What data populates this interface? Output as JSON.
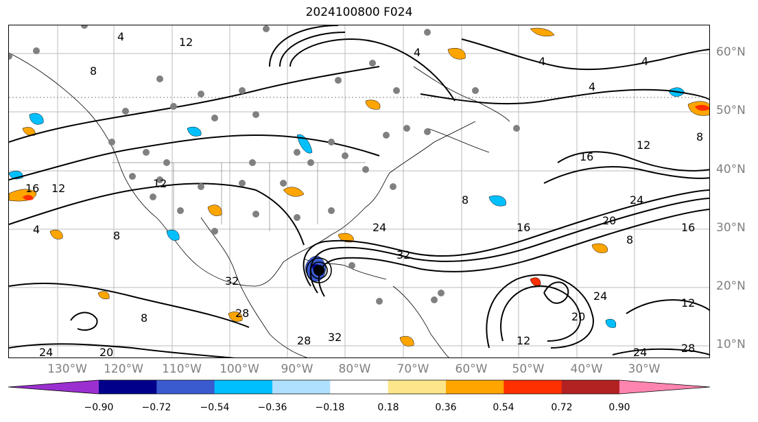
{
  "title": "2024100800 F024",
  "lat_labels": [
    "60°N",
    "50°N",
    "40°N",
    "30°N",
    "20°N",
    "10°N"
  ],
  "lon_labels": [
    "130°W",
    "120°W",
    "110°W",
    "100°W",
    "90°W",
    "80°W",
    "70°W",
    "60°W",
    "50°W",
    "40°W",
    "30°W"
  ],
  "contour_labels": [
    "4",
    "8",
    "12",
    "16",
    "20",
    "24",
    "28",
    "32"
  ],
  "colorbar": {
    "ticks": [
      "−0.90",
      "−0.72",
      "−0.54",
      "−0.36",
      "−0.18",
      "0.18",
      "0.36",
      "0.54",
      "0.72",
      "0.90"
    ],
    "colors": [
      "#9b30d0",
      "#00008b",
      "#3a5bd0",
      "#00bfff",
      "#b0e0ff",
      "#ffffff",
      "#fde68a",
      "#ffa500",
      "#ff3000",
      "#b22222",
      "#ff85b0"
    ]
  },
  "colors": {
    "contour": "#000000",
    "station": "#808080",
    "axis_label": "#7f7f7f"
  }
}
